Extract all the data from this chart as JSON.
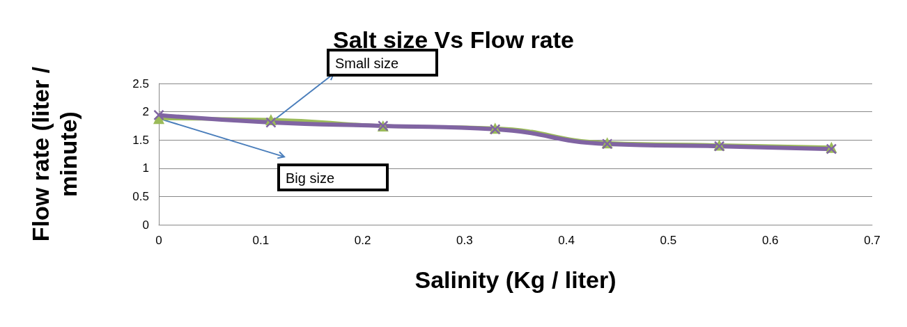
{
  "chart_data": {
    "type": "line",
    "title": "Salt size Vs Flow rate",
    "xlabel": "Salinity (Kg / liter)",
    "ylabel": "Flow rate (liter / minute)",
    "x": [
      0,
      0.11,
      0.22,
      0.33,
      0.44,
      0.55,
      0.66
    ],
    "series": [
      {
        "color": "#9bbb59",
        "marker": "triangle",
        "values": [
          1.88,
          1.86,
          1.75,
          1.71,
          1.45,
          1.41,
          1.37
        ]
      },
      {
        "color": "#8064a2",
        "marker": "cross",
        "values": [
          1.94,
          1.81,
          1.75,
          1.69,
          1.43,
          1.39,
          1.34
        ]
      }
    ],
    "annotations": [
      {
        "text": "Small size",
        "x": 0.11,
        "y": 1.81
      },
      {
        "text": "Big size",
        "x": 0,
        "y": 1.88
      }
    ],
    "xlim": [
      0,
      0.7
    ],
    "xticks": [
      0,
      0.1,
      0.2,
      0.3,
      0.4,
      0.5,
      0.6,
      0.7
    ],
    "ylim": [
      0,
      2.5
    ],
    "yticks": [
      0,
      0.5,
      1,
      1.5,
      2,
      2.5
    ],
    "grid": "y",
    "line_style": "solid"
  }
}
